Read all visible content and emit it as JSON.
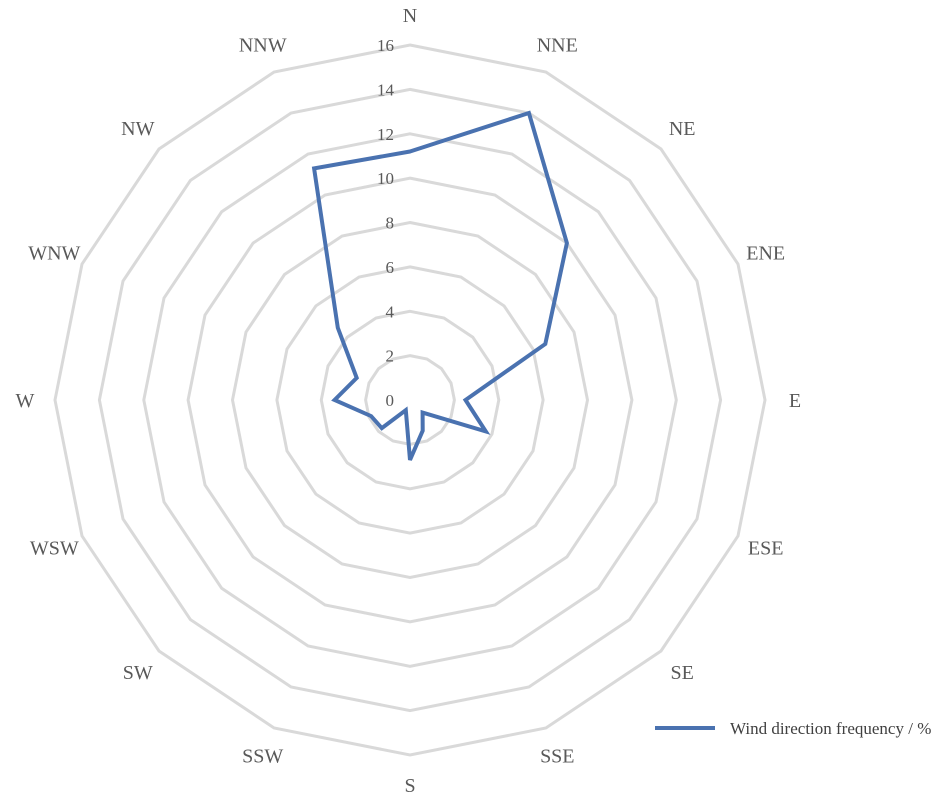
{
  "chart_data": {
    "type": "radar",
    "categories": [
      "N",
      "NNE",
      "NE",
      "ENE",
      "E",
      "ESE",
      "SE",
      "SSE",
      "S",
      "SSW",
      "SW",
      "WSW",
      "W",
      "WNW",
      "NW",
      "NNW"
    ],
    "series": [
      {
        "name": "Wind direction frequency / %",
        "values": [
          11.2,
          14.0,
          10.0,
          6.6,
          2.5,
          3.7,
          0.8,
          1.5,
          2.7,
          0.5,
          1.8,
          1.9,
          3.4,
          2.6,
          4.6,
          11.3
        ]
      }
    ],
    "rlim": [
      0,
      16
    ],
    "ticks": [
      0,
      2,
      4,
      6,
      8,
      10,
      12,
      14,
      16
    ],
    "tick_labels": [
      "0",
      "2",
      "4",
      "6",
      "8",
      "10",
      "12",
      "14",
      "16"
    ],
    "grid": true,
    "legend_position": "bottom-right",
    "colors": {
      "series": "#4a72b0",
      "grid": "#d9d9d9",
      "text": "#595959"
    }
  }
}
